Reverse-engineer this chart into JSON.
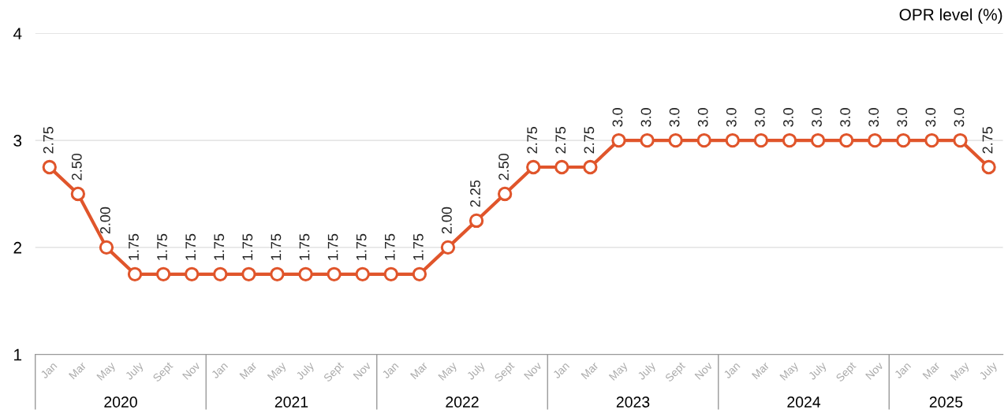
{
  "chart_data": {
    "type": "line",
    "ylabel": "OPR level (%)",
    "categories": [
      "Jan",
      "Mar",
      "May",
      "July",
      "Sept",
      "Nov",
      "Jan",
      "Mar",
      "May",
      "July",
      "Sept",
      "Nov",
      "Jan",
      "Mar",
      "May",
      "July",
      "Sept",
      "Nov",
      "Jan",
      "Mar",
      "May",
      "July",
      "Sept",
      "Nov",
      "Jan",
      "Mar",
      "May",
      "July",
      "Sept",
      "Nov",
      "Jan",
      "Mar",
      "May",
      "July"
    ],
    "annotations": [
      "2020",
      "2021",
      "2022",
      "2023",
      "2024",
      "2025"
    ],
    "series": [
      {
        "color": "#e0552b",
        "values": [
          2.75,
          2.5,
          2.0,
          1.75,
          1.75,
          1.75,
          1.75,
          1.75,
          1.75,
          1.75,
          1.75,
          1.75,
          1.75,
          1.75,
          2.0,
          2.25,
          2.5,
          2.75,
          2.75,
          2.75,
          3.0,
          3.0,
          3.0,
          3.0,
          3.0,
          3.0,
          3.0,
          3.0,
          3.0,
          3.0,
          3.0,
          3.0,
          3.0,
          2.75
        ],
        "value_labels": [
          "2.75",
          "2.50",
          "2.00",
          "1.75",
          "1.75",
          "1.75",
          "1.75",
          "1.75",
          "1.75",
          "1.75",
          "1.75",
          "1.75",
          "1.75",
          "1.75",
          "2.00",
          "2.25",
          "2.50",
          "2.75",
          "2.75",
          "2.75",
          "3.0",
          "3.0",
          "3.0",
          "3.0",
          "3.0",
          "3.0",
          "3.0",
          "3.0",
          "3.0",
          "3.0",
          "3.0",
          "3.0",
          "3.0",
          "2.75"
        ]
      }
    ],
    "ylim": [
      1,
      4
    ],
    "yticks": [
      1,
      2,
      3,
      4
    ],
    "grid": "y",
    "marker": "circle",
    "line_style": "solid"
  }
}
